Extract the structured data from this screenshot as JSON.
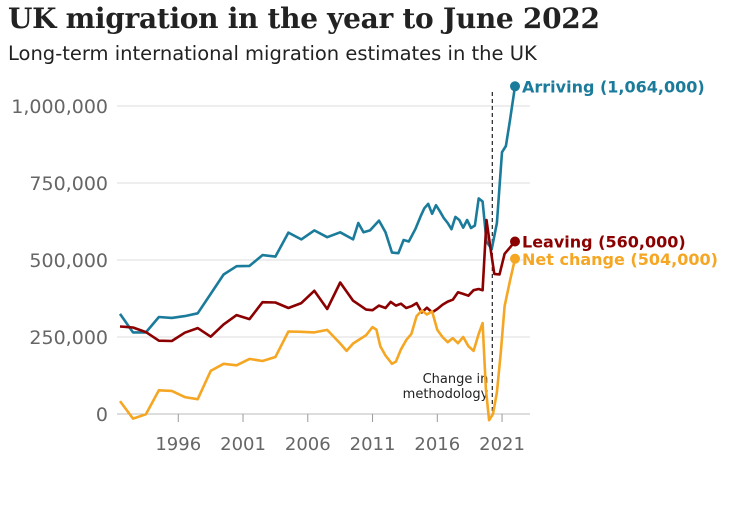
{
  "chart_data": {
    "type": "line",
    "title": "UK migration in the year to June 2022",
    "subtitle": "Long-term international migration estimates in the UK",
    "ylim": [
      0,
      1100000
    ],
    "xlim": [
      1991.5,
      2023
    ],
    "yticks": [
      {
        "value": 0,
        "label": "0"
      },
      {
        "value": 250000,
        "label": "250,000"
      },
      {
        "value": 500000,
        "label": "500,000"
      },
      {
        "value": 750000,
        "label": "750,000"
      },
      {
        "value": 1000000,
        "label": "1,000,000"
      }
    ],
    "xticks": [
      {
        "value": 1996,
        "label": "1996"
      },
      {
        "value": 2001,
        "label": "2001"
      },
      {
        "value": 2006,
        "label": "2006"
      },
      {
        "value": 2011,
        "label": "2011"
      },
      {
        "value": 2016,
        "label": "2016"
      },
      {
        "value": 2021,
        "label": "2021"
      }
    ],
    "grid": true,
    "annotation": {
      "x": 2020.25,
      "lines": [
        "Change in",
        "methodology"
      ]
    },
    "series": [
      {
        "name": "Arriving",
        "label": "Arriving (1,064,000)",
        "color": "#1b7b9b",
        "points": [
          [
            1991.5,
            325000
          ],
          [
            1992.5,
            265000
          ],
          [
            1993.5,
            265000
          ],
          [
            1994.5,
            315000
          ],
          [
            1995.5,
            312000
          ],
          [
            1996.5,
            318000
          ],
          [
            1997.5,
            327000
          ],
          [
            1998.5,
            390000
          ],
          [
            1999.5,
            453000
          ],
          [
            2000.5,
            480000
          ],
          [
            2001.5,
            481000
          ],
          [
            2002.5,
            516000
          ],
          [
            2003.5,
            511000
          ],
          [
            2004.5,
            589000
          ],
          [
            2005.5,
            567000
          ],
          [
            2006.5,
            596000
          ],
          [
            2007.5,
            574000
          ],
          [
            2008.5,
            590000
          ],
          [
            2009.5,
            567000
          ],
          [
            2009.9,
            620000
          ],
          [
            2010.3,
            590000
          ],
          [
            2010.8,
            596000
          ],
          [
            2011.5,
            628000
          ],
          [
            2012.0,
            590000
          ],
          [
            2012.5,
            524000
          ],
          [
            2013.0,
            522000
          ],
          [
            2013.4,
            565000
          ],
          [
            2013.8,
            560000
          ],
          [
            2014.3,
            600000
          ],
          [
            2014.7,
            641000
          ],
          [
            2015.0,
            668000
          ],
          [
            2015.3,
            682000
          ],
          [
            2015.6,
            650000
          ],
          [
            2015.9,
            678000
          ],
          [
            2016.2,
            658000
          ],
          [
            2016.5,
            636000
          ],
          [
            2016.8,
            620000
          ],
          [
            2017.1,
            600000
          ],
          [
            2017.4,
            640000
          ],
          [
            2017.7,
            630000
          ],
          [
            2018.0,
            605000
          ],
          [
            2018.3,
            630000
          ],
          [
            2018.6,
            604000
          ],
          [
            2018.9,
            612000
          ],
          [
            2019.2,
            700000
          ],
          [
            2019.5,
            690000
          ],
          [
            2019.8,
            560000
          ],
          [
            2020.2,
            535000
          ],
          [
            2020.6,
            620000
          ],
          [
            2021.0,
            850000
          ],
          [
            2021.3,
            870000
          ],
          [
            2021.6,
            950000
          ],
          [
            2022.0,
            1064000
          ]
        ]
      },
      {
        "name": "Leaving",
        "label": "Leaving (560,000)",
        "color": "#8b0000",
        "points": [
          [
            1991.5,
            284000
          ],
          [
            1992.5,
            281000
          ],
          [
            1993.5,
            266000
          ],
          [
            1994.5,
            238000
          ],
          [
            1995.5,
            237000
          ],
          [
            1996.5,
            264000
          ],
          [
            1997.5,
            279000
          ],
          [
            1998.5,
            251000
          ],
          [
            1999.5,
            291000
          ],
          [
            2000.5,
            321000
          ],
          [
            2001.5,
            308000
          ],
          [
            2002.5,
            363000
          ],
          [
            2003.5,
            362000
          ],
          [
            2004.5,
            344000
          ],
          [
            2005.5,
            360000
          ],
          [
            2006.5,
            400000
          ],
          [
            2007.5,
            341000
          ],
          [
            2008.5,
            427000
          ],
          [
            2009.5,
            368000
          ],
          [
            2010.5,
            339000
          ],
          [
            2011.0,
            337000
          ],
          [
            2011.5,
            352000
          ],
          [
            2012.0,
            344000
          ],
          [
            2012.4,
            364000
          ],
          [
            2012.8,
            352000
          ],
          [
            2013.2,
            358000
          ],
          [
            2013.6,
            344000
          ],
          [
            2014.0,
            350000
          ],
          [
            2014.4,
            360000
          ],
          [
            2014.8,
            330000
          ],
          [
            2015.2,
            345000
          ],
          [
            2015.6,
            330000
          ],
          [
            2016.0,
            341000
          ],
          [
            2016.4,
            355000
          ],
          [
            2016.8,
            365000
          ],
          [
            2017.2,
            371000
          ],
          [
            2017.6,
            395000
          ],
          [
            2018.0,
            390000
          ],
          [
            2018.4,
            384000
          ],
          [
            2018.8,
            402000
          ],
          [
            2019.2,
            406000
          ],
          [
            2019.5,
            402000
          ],
          [
            2019.8,
            630000
          ],
          [
            2020.1,
            540000
          ],
          [
            2020.4,
            455000
          ],
          [
            2020.8,
            453000
          ],
          [
            2021.2,
            520000
          ],
          [
            2021.6,
            540000
          ],
          [
            2022.0,
            560000
          ]
        ]
      },
      {
        "name": "Net change",
        "label": "Net change (504,000)",
        "color": "#f5a623",
        "points": [
          [
            1991.5,
            42000
          ],
          [
            1992.5,
            -15000
          ],
          [
            1993.5,
            -1000
          ],
          [
            1994.5,
            77000
          ],
          [
            1995.5,
            75000
          ],
          [
            1996.5,
            55000
          ],
          [
            1997.5,
            48000
          ],
          [
            1998.5,
            140000
          ],
          [
            1999.5,
            163000
          ],
          [
            2000.5,
            158000
          ],
          [
            2001.5,
            179000
          ],
          [
            2002.5,
            172000
          ],
          [
            2003.5,
            185000
          ],
          [
            2004.5,
            268000
          ],
          [
            2005.5,
            267000
          ],
          [
            2006.5,
            265000
          ],
          [
            2007.5,
            273000
          ],
          [
            2008.5,
            229000
          ],
          [
            2009.0,
            205000
          ],
          [
            2009.5,
            229000
          ],
          [
            2010.5,
            256000
          ],
          [
            2011.0,
            282000
          ],
          [
            2011.3,
            274000
          ],
          [
            2011.6,
            220000
          ],
          [
            2012.0,
            190000
          ],
          [
            2012.5,
            163000
          ],
          [
            2012.8,
            170000
          ],
          [
            2013.2,
            210000
          ],
          [
            2013.6,
            240000
          ],
          [
            2014.0,
            260000
          ],
          [
            2014.4,
            318000
          ],
          [
            2014.8,
            336000
          ],
          [
            2015.2,
            323000
          ],
          [
            2015.6,
            333000
          ],
          [
            2016.0,
            273000
          ],
          [
            2016.4,
            250000
          ],
          [
            2016.8,
            233000
          ],
          [
            2017.2,
            246000
          ],
          [
            2017.6,
            230000
          ],
          [
            2018.0,
            250000
          ],
          [
            2018.4,
            220000
          ],
          [
            2018.8,
            205000
          ],
          [
            2019.2,
            260000
          ],
          [
            2019.5,
            295000
          ],
          [
            2019.75,
            80000
          ],
          [
            2020.0,
            -20000
          ],
          [
            2020.3,
            0
          ],
          [
            2020.6,
            70000
          ],
          [
            2020.9,
            200000
          ],
          [
            2021.2,
            350000
          ],
          [
            2021.6,
            430000
          ],
          [
            2022.0,
            504000
          ]
        ]
      }
    ]
  }
}
